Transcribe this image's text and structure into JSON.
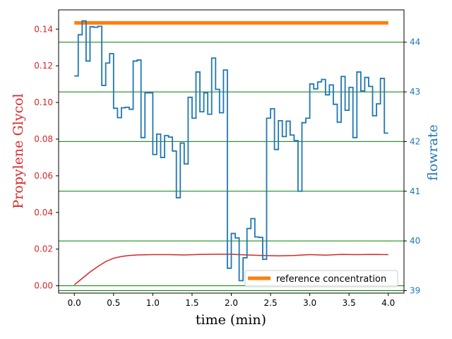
{
  "chart_data": {
    "type": "line",
    "xlabel": "time (min)",
    "ylabel_left": "Propylene Glycol",
    "ylabel_right": "flowrate",
    "xlim": [
      -0.2,
      4.2
    ],
    "ylim_left": [
      -0.004,
      0.1505
    ],
    "ylim_right": [
      38.95,
      44.65
    ],
    "x_ticks": [
      0.0,
      0.5,
      1.0,
      1.5,
      2.0,
      2.5,
      3.0,
      3.5,
      4.0
    ],
    "x_tick_labels": [
      "0.0",
      "0.5",
      "1.0",
      "1.5",
      "2.0",
      "2.5",
      "3.0",
      "3.5",
      "4.0"
    ],
    "left_ticks": [
      0.0,
      0.02,
      0.04,
      0.06,
      0.08,
      0.1,
      0.12,
      0.14
    ],
    "left_tick_labels": [
      "0.00",
      "0.02",
      "0.04",
      "0.06",
      "0.08",
      "0.10",
      "0.12",
      "0.14"
    ],
    "right_ticks": [
      39,
      40,
      41,
      42,
      43,
      44
    ],
    "right_tick_labels": [
      "39",
      "40",
      "41",
      "42",
      "43",
      "44"
    ],
    "grid": "horizontal, right axis, green",
    "legend_placement": "lower-right",
    "colors": {
      "left_axis": "#d62728",
      "right_axis": "#1f77b4",
      "reference": "#ff7f0e",
      "grid": "#008000"
    },
    "series": [
      {
        "name": "reference concentration",
        "axis": "left",
        "style": "thick-line",
        "x": [
          0.0,
          4.0
        ],
        "y": [
          0.1434,
          0.1434
        ]
      },
      {
        "axis": "left",
        "style": "line",
        "x": [
          0.0,
          0.1,
          0.2,
          0.3,
          0.4,
          0.5,
          0.6,
          0.7,
          0.8,
          1.0,
          1.2,
          1.4,
          1.6,
          1.8,
          2.0,
          2.2,
          2.4,
          2.6,
          2.8,
          3.0,
          3.2,
          3.4,
          3.6,
          3.8,
          4.0
        ],
        "y": [
          0.0005,
          0.004,
          0.0075,
          0.0105,
          0.0132,
          0.015,
          0.016,
          0.0165,
          0.0168,
          0.017,
          0.017,
          0.0168,
          0.0171,
          0.0172,
          0.0172,
          0.0168,
          0.0165,
          0.0163,
          0.0165,
          0.017,
          0.0167,
          0.0171,
          0.017,
          0.0171,
          0.017
        ]
      },
      {
        "axis": "right",
        "style": "step",
        "x": [
          0.0,
          0.05,
          0.1,
          0.15,
          0.2,
          0.25,
          0.3,
          0.35,
          0.4,
          0.45,
          0.5,
          0.55,
          0.6,
          0.65,
          0.7,
          0.75,
          0.8,
          0.85,
          0.9,
          0.95,
          1.0,
          1.05,
          1.1,
          1.15,
          1.2,
          1.25,
          1.3,
          1.35,
          1.4,
          1.45,
          1.5,
          1.55,
          1.6,
          1.65,
          1.7,
          1.75,
          1.8,
          1.85,
          1.9,
          1.95,
          2.0,
          2.05,
          2.1,
          2.15,
          2.2,
          2.25,
          2.3,
          2.35,
          2.4,
          2.45,
          2.5,
          2.55,
          2.6,
          2.65,
          2.7,
          2.75,
          2.8,
          2.85,
          2.9,
          2.95,
          3.0,
          3.05,
          3.1,
          3.15,
          3.2,
          3.25,
          3.3,
          3.35,
          3.4,
          3.45,
          3.5,
          3.55,
          3.6,
          3.65,
          3.7,
          3.75,
          3.8,
          3.85,
          3.9,
          3.95,
          4.0
        ],
        "y": [
          43.32,
          44.15,
          44.43,
          43.62,
          44.31,
          44.3,
          44.32,
          43.13,
          43.58,
          43.77,
          42.67,
          42.48,
          42.68,
          42.69,
          42.65,
          43.62,
          43.64,
          42.08,
          42.98,
          42.98,
          41.74,
          42.15,
          41.68,
          42.12,
          42.09,
          41.81,
          40.87,
          41.97,
          41.55,
          42.89,
          42.47,
          43.4,
          42.6,
          42.98,
          42.55,
          43.68,
          43.05,
          42.58,
          43.44,
          39.45,
          40.15,
          40.06,
          39.2,
          39.66,
          40.25,
          40.45,
          40.08,
          40.07,
          39.63,
          42.47,
          42.66,
          41.84,
          42.42,
          42.1,
          42.41,
          42.13,
          42.02,
          41.0,
          42.38,
          42.47,
          43.16,
          43.06,
          43.2,
          43.25,
          42.94,
          43.14,
          42.75,
          42.39,
          43.31,
          42.63,
          43.09,
          42.08,
          43.4,
          43.02,
          43.29,
          43.11,
          42.52,
          42.76,
          43.27,
          42.17,
          42.17
        ]
      }
    ]
  }
}
